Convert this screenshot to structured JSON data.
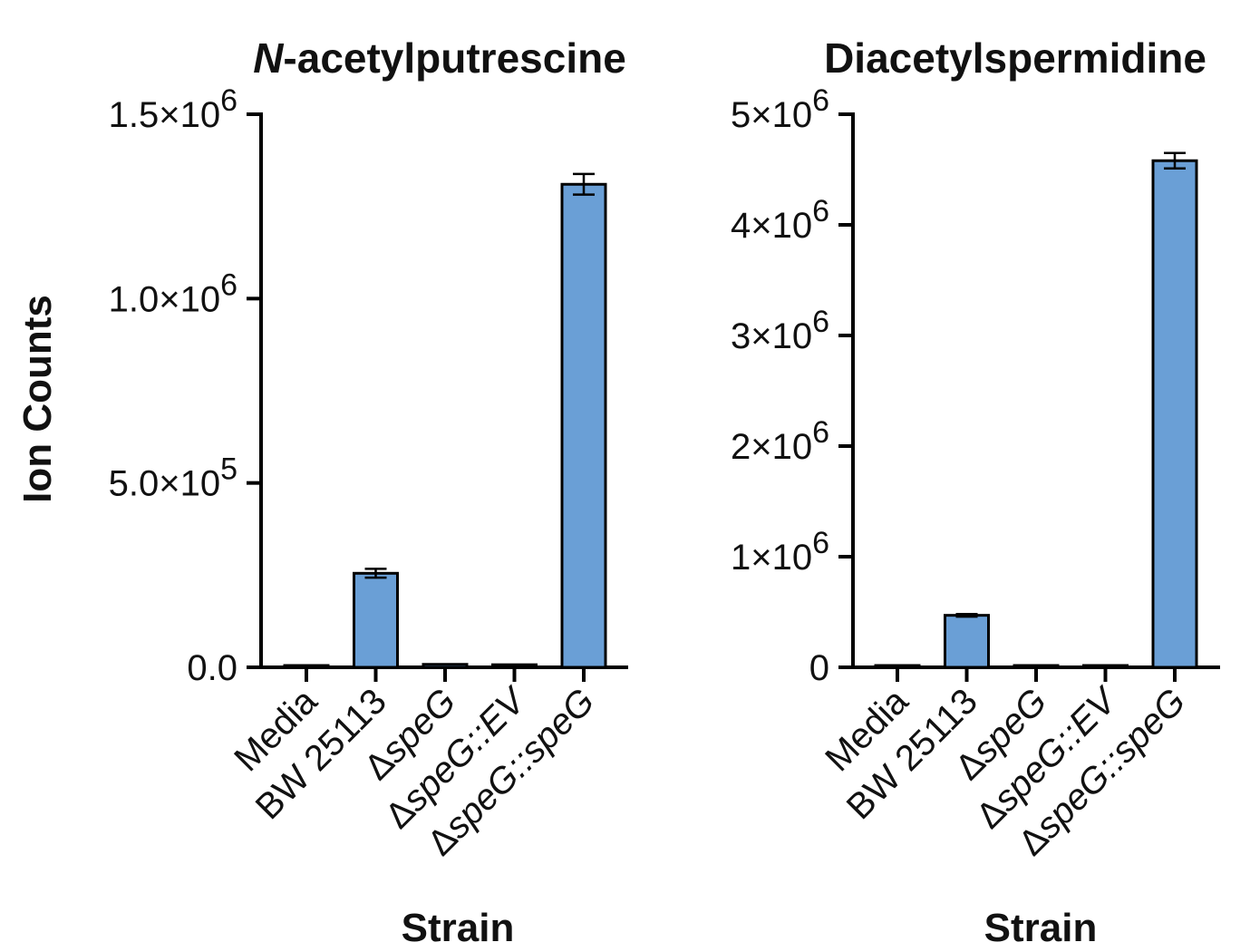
{
  "shared": {
    "ylabel": "Ion Counts",
    "xlabel": "Strain",
    "bar_color": "#6a9fd6",
    "categories": [
      {
        "prefix": "",
        "name": "Media"
      },
      {
        "prefix": "",
        "name": "BW 25113"
      },
      {
        "prefix": "Δ",
        "name": "speG"
      },
      {
        "prefix": "Δ",
        "name": "speG::EV"
      },
      {
        "prefix": "Δ",
        "name": "speG::speG"
      }
    ]
  },
  "chart_data": [
    {
      "type": "bar",
      "title_italic": "N",
      "title_rest": "-acetylputrescine",
      "categories": [
        "Media",
        "BW 25113",
        "ΔspeG",
        "ΔspeG::EV",
        "ΔspeG::speG"
      ],
      "values": [
        2000,
        255000,
        8000,
        7000,
        1310000
      ],
      "errors": [
        0,
        12000,
        0,
        0,
        28000
      ],
      "ylim": [
        0,
        1500000
      ],
      "yticks": [
        {
          "value": 0,
          "mantissa": "0.0",
          "exp": ""
        },
        {
          "value": 500000,
          "mantissa": "5.0×10",
          "exp": "5"
        },
        {
          "value": 1000000,
          "mantissa": "1.0×10",
          "exp": "6"
        },
        {
          "value": 1500000,
          "mantissa": "1.5×10",
          "exp": "6"
        }
      ],
      "xlabel": "Strain",
      "ylabel": "Ion Counts"
    },
    {
      "type": "bar",
      "title_italic": "",
      "title_rest": "Diacetylspermidine",
      "categories": [
        "Media",
        "BW 25113",
        "ΔspeG",
        "ΔspeG::EV",
        "ΔspeG::speG"
      ],
      "values": [
        5000,
        470000,
        0,
        0,
        4580000
      ],
      "errors": [
        0,
        12000,
        0,
        0,
        70000
      ],
      "ylim": [
        0,
        5000000
      ],
      "yticks": [
        {
          "value": 0,
          "mantissa": "0",
          "exp": ""
        },
        {
          "value": 1000000,
          "mantissa": "1×10",
          "exp": "6"
        },
        {
          "value": 2000000,
          "mantissa": "2×10",
          "exp": "6"
        },
        {
          "value": 3000000,
          "mantissa": "3×10",
          "exp": "6"
        },
        {
          "value": 4000000,
          "mantissa": "4×10",
          "exp": "6"
        },
        {
          "value": 5000000,
          "mantissa": "5×10",
          "exp": "6"
        }
      ],
      "xlabel": "Strain",
      "ylabel": ""
    }
  ]
}
